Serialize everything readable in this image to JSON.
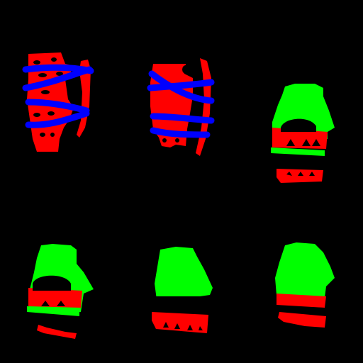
{
  "colors": {
    "background": "#000000",
    "red": "#ff0000",
    "green": "#00ff00",
    "blue": "#0000ff"
  },
  "grid": {
    "rows": 2,
    "columns": 3
  },
  "panels": [
    {
      "layers": [
        "red",
        "blue"
      ]
    },
    {
      "layers": [
        "red",
        "blue"
      ]
    },
    {
      "layers": [
        "green",
        "red"
      ]
    },
    {
      "layers": [
        "green",
        "red"
      ]
    },
    {
      "layers": [
        "green",
        "red"
      ]
    },
    {
      "layers": [
        "green",
        "red"
      ]
    }
  ]
}
